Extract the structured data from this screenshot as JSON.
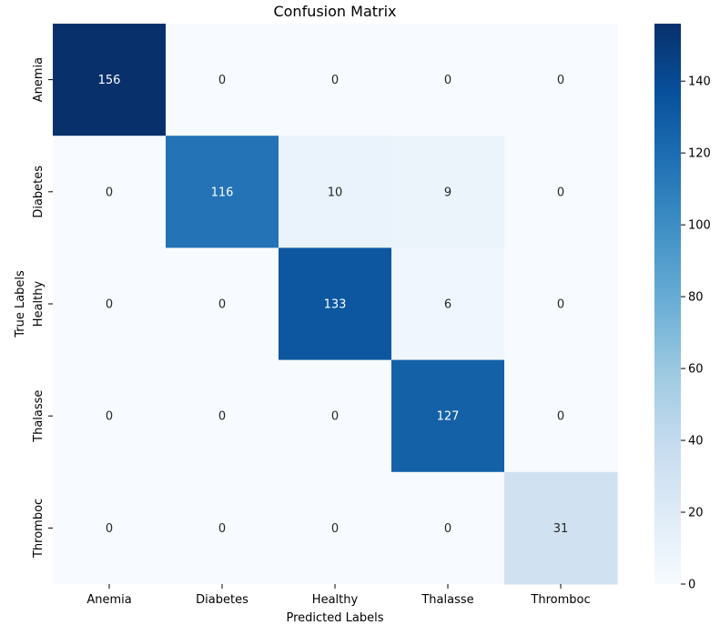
{
  "chart_data": {
    "type": "heatmap",
    "title": "Confusion Matrix",
    "xlabel": "Predicted Labels",
    "ylabel": "True Labels",
    "x_categories": [
      "Anemia",
      "Diabetes",
      "Healthy",
      "Thalasse",
      "Thromboc"
    ],
    "y_categories": [
      "Anemia",
      "Diabetes",
      "Healthy",
      "Thalasse",
      "Thromboc"
    ],
    "values": [
      [
        156,
        0,
        0,
        0,
        0
      ],
      [
        0,
        116,
        10,
        9,
        0
      ],
      [
        0,
        0,
        133,
        6,
        0
      ],
      [
        0,
        0,
        0,
        127,
        0
      ],
      [
        0,
        0,
        0,
        0,
        31
      ]
    ],
    "colormap": "Blues",
    "color_range": [
      0,
      156
    ],
    "colorbar_ticks": [
      0,
      20,
      40,
      60,
      80,
      100,
      120,
      140
    ],
    "annotate_values": true
  }
}
